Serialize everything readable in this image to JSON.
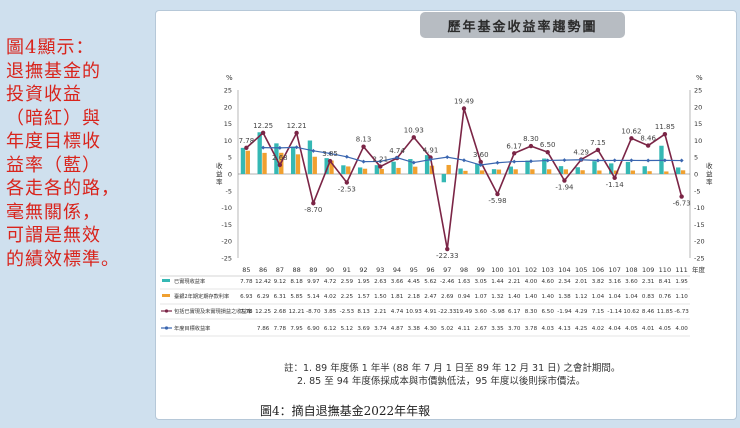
{
  "title": "歷年基金收益率趨勢圖",
  "side_text": [
    "圖4顯示：",
    "退撫基金的",
    "投資收益",
    "（暗紅）與",
    "年度目標收",
    "益率（藍）",
    "各走各的路，",
    "毫無關係，",
    "可謂是無效",
    "的績效標準。"
  ],
  "notes": [
    "註：1. 89 年度係 1 年半 (88 年 7 月 1 日至 89 年 12 月 31 日) 之會計期間。",
    "2. 85 至 94 年度係採成本與市價孰低法，95 年度以後則採市價法。"
  ],
  "caption": "圖4：摘自退撫基金2022年年報",
  "chart_data": {
    "type": "bar",
    "ylabel_left": "%",
    "ylabel_right": "%",
    "ylabel_side": "收益率",
    "ylim": [
      -25,
      25
    ],
    "yticks": [
      25,
      20,
      15,
      10,
      5,
      0,
      -5,
      -10,
      -15,
      -20,
      -25
    ],
    "xlabel_suffix": "年度",
    "categories": [
      "85",
      "86",
      "87",
      "88",
      "89",
      "90",
      "91",
      "92",
      "93",
      "94",
      "95",
      "96",
      "97",
      "98",
      "99",
      "100",
      "101",
      "102",
      "103",
      "104",
      "105",
      "106",
      "107",
      "108",
      "109",
      "110",
      "111"
    ],
    "series": [
      {
        "name": "已實現收益率",
        "color": "#35b8b4",
        "kind": "bar",
        "values": [
          7.78,
          12.42,
          9.12,
          8.18,
          9.97,
          4.72,
          2.59,
          1.95,
          2.63,
          3.66,
          4.45,
          5.62,
          -2.46,
          1.63,
          3.05,
          1.44,
          2.21,
          4.0,
          4.6,
          2.34,
          2.01,
          3.82,
          3.16,
          3.6,
          2.31,
          8.41,
          1.95
        ]
      },
      {
        "name": "臺銀2年期定期存款利率",
        "color": "#f0a030",
        "kind": "bar",
        "values": [
          6.93,
          6.29,
          6.31,
          5.85,
          5.14,
          4.02,
          2.25,
          1.57,
          1.5,
          1.81,
          2.18,
          2.47,
          2.69,
          0.94,
          1.07,
          1.32,
          1.4,
          1.4,
          1.4,
          1.38,
          1.12,
          1.04,
          1.04,
          1.04,
          0.83,
          0.76,
          1.1
        ]
      },
      {
        "name": "包括已實現及未實現損益之收益率",
        "color": "#7b2546",
        "kind": "line",
        "values": [
          7.78,
          12.25,
          2.68,
          12.21,
          -8.7,
          3.85,
          -2.53,
          8.13,
          2.21,
          4.74,
          10.93,
          4.91,
          -22.33,
          19.49,
          3.6,
          -5.98,
          6.17,
          8.3,
          6.5,
          -1.94,
          4.29,
          7.15,
          -1.14,
          10.62,
          8.46,
          11.85,
          -6.73
        ]
      },
      {
        "name": "年度目標收益率",
        "color": "#3a66b0",
        "kind": "line",
        "values": [
          null,
          7.86,
          7.78,
          7.95,
          6.9,
          6.12,
          5.12,
          3.69,
          3.74,
          4.87,
          3.38,
          4.3,
          5.02,
          4.11,
          2.67,
          3.35,
          3.7,
          3.78,
          4.03,
          4.13,
          4.25,
          4.02,
          4.04,
          4.05,
          4.01,
          4.05,
          4.0
        ]
      }
    ],
    "table_rows": [
      {
        "label": "已實現收益率",
        "values": [
          "7.78",
          "12.42",
          "9.12",
          "8.18",
          "9.97",
          "4.72",
          "2.59",
          "1.95",
          "2.63",
          "3.66",
          "4.45",
          "5.62",
          "-2.46",
          "1.63",
          "3.05",
          "1.44",
          "2.21",
          "4.00",
          "4.60",
          "2.34",
          "2.01",
          "3.82",
          "3.16",
          "3.60",
          "2.31",
          "8.41",
          "1.95"
        ]
      },
      {
        "label": "臺銀2年期定期存款利率",
        "values": [
          "6.93",
          "6.29",
          "6.31",
          "5.85",
          "5.14",
          "4.02",
          "2.25",
          "1.57",
          "1.50",
          "1.81",
          "2.18",
          "2.47",
          "2.69",
          "0.94",
          "1.07",
          "1.32",
          "1.40",
          "1.40",
          "1.40",
          "1.38",
          "1.12",
          "1.04",
          "1.04",
          "1.04",
          "0.83",
          "0.76",
          "1.10"
        ]
      },
      {
        "label": "包括已實現及未實現損益之收益率",
        "values": [
          "7.78",
          "12.25",
          "2.68",
          "12.21",
          "-8.70",
          "3.85",
          "-2.53",
          "8.13",
          "2.21",
          "4.74",
          "10.93",
          "4.91",
          "-22.33",
          "19.49",
          "3.60",
          "-5.98",
          "6.17",
          "8.30",
          "6.50",
          "-1.94",
          "4.29",
          "7.15",
          "-1.14",
          "10.62",
          "8.46",
          "11.85",
          "-6.73"
        ]
      },
      {
        "label": "年度目標收益率",
        "values": [
          "",
          "7.86",
          "7.78",
          "7.95",
          "6.90",
          "6.12",
          "5.12",
          "3.69",
          "3.74",
          "4.87",
          "3.38",
          "4.30",
          "5.02",
          "4.11",
          "2.67",
          "3.35",
          "3.70",
          "3.78",
          "4.03",
          "4.13",
          "4.25",
          "4.02",
          "4.04",
          "4.05",
          "4.01",
          "4.05",
          "4.00"
        ]
      }
    ],
    "point_labels": [
      "7.78",
      "12.25",
      "2.68",
      "12.21",
      "-8.70",
      "3.85",
      "-2.53",
      "8.13",
      "2.21",
      "4.74",
      "10.93",
      "4.91",
      "-22.33",
      "19.49",
      "3.60",
      "-5.98",
      "6.17",
      "8.30",
      "6.50",
      "-1.94",
      "4.29",
      "7.15",
      "-1.14",
      "10.62",
      "8.46",
      "11.85",
      "-6.73"
    ],
    "grid": false,
    "legend": "bottom-table"
  }
}
